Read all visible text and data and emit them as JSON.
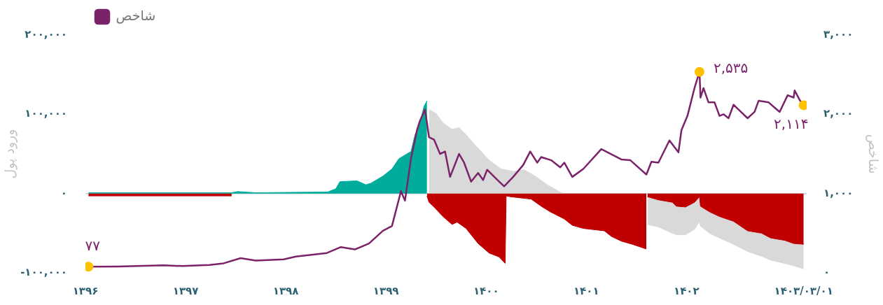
{
  "chart_data": {
    "type": "line",
    "ylabel": "ورود پول",
    "y2label": "شاخص",
    "legend": "top left",
    "xlim": [
      1396,
      1403.2
    ],
    "xticks": [
      {
        "value": 1396,
        "label": "۱۳۹۶"
      },
      {
        "value": 1397,
        "label": "۱۳۹۷"
      },
      {
        "value": 1398,
        "label": "۱۳۹۸"
      },
      {
        "value": 1399,
        "label": "۱۳۹۹"
      },
      {
        "value": 1400,
        "label": "۱۴۰۰"
      },
      {
        "value": 1401,
        "label": "۱۴۰۱"
      },
      {
        "value": 1402,
        "label": "۱۴۰۲"
      },
      {
        "value": 1403.17,
        "label": "۱۴۰۳/۰۳/۰۱"
      }
    ],
    "ylim": [
      -100000,
      200000
    ],
    "yticks": [
      {
        "value": -100000,
        "label": "-۱۰۰,۰۰۰"
      },
      {
        "value": 0,
        "label": "۰"
      },
      {
        "value": 100000,
        "label": "۱۰۰,۰۰۰"
      },
      {
        "value": 200000,
        "label": "۲۰۰,۰۰۰"
      }
    ],
    "y2lim": [
      0,
      3000
    ],
    "y2ticks": [
      {
        "value": 0,
        "label": "۰"
      },
      {
        "value": 1000,
        "label": "۱,۰۰۰"
      },
      {
        "value": 2000,
        "label": "۲,۰۰۰"
      },
      {
        "value": 3000,
        "label": "۳,۰۰۰"
      }
    ],
    "ref_lines": [
      {
        "axis": "y",
        "value": 0,
        "color": "#d0d0d0"
      }
    ],
    "series": [
      {
        "type": "area",
        "color": "#d9d9d9",
        "x": [
          1399.43,
          1399.5,
          1399.57,
          1399.66,
          1399.73,
          1399.8,
          1399.92,
          1400.03,
          1400.15,
          1400.27,
          1400.38,
          1400.5,
          1400.61,
          1400.75,
          1400.78,
          1401,
          1401.61,
          1401.72,
          1401.86,
          1401.9,
          1401.99,
          1402.08,
          1402.13,
          1402.14,
          1402.23,
          1402.33,
          1402.47,
          1402.61,
          1402.75,
          1402.84,
          1402.98,
          1403.07,
          1403.17
        ],
        "values": [
          106000,
          101000,
          89000,
          81000,
          83000,
          74000,
          57000,
          42000,
          31000,
          28000,
          30000,
          21000,
          11000,
          1000,
          0,
          null,
          -39000,
          -42000,
          -50000,
          -52000,
          -52000,
          -45000,
          -35000,
          -41000,
          -50000,
          -56000,
          -64000,
          -73000,
          -79000,
          -84000,
          -88000,
          -91000,
          -95000
        ]
      },
      {
        "type": "area",
        "color": "#00ad9c",
        "x": [
          1396.03,
          1397.46,
          1397.52,
          1397.7,
          1398.42,
          1398.5,
          1398.54,
          1398.71,
          1398.8,
          1398.85,
          1398.97,
          1399.06,
          1399.13,
          1399.25,
          1399.29,
          1399.34,
          1399.38,
          1399.41
        ],
        "values": [
          1000,
          1000,
          2500,
          1000,
          2000,
          6000,
          15000,
          16000,
          11000,
          13000,
          22000,
          31000,
          44000,
          53000,
          74000,
          89000,
          110000,
          117000
        ]
      },
      {
        "type": "area",
        "color": "#c00000",
        "x": [
          1396.03,
          1397.46,
          1398,
          1399.41,
          1399.43,
          1399.48,
          1399.57,
          1399.66,
          1399.71,
          1399.8,
          1399.92,
          1400.03,
          1400.13,
          1400.19,
          1400.2,
          1400.24,
          1400.45,
          1400.55,
          1400.64,
          1400.78,
          1400.86,
          1400.97,
          1401.18,
          1401.25,
          1401.35,
          1401.46,
          1401.6,
          1401.605,
          1401.61,
          1401.72,
          1401.86,
          1401.9,
          1401.99,
          1402.08,
          1402.13,
          1402.14,
          1402.23,
          1402.33,
          1402.47,
          1402.61,
          1402.75,
          1402.84,
          1402.98,
          1403.07,
          1403.17
        ],
        "values": [
          -3000,
          -3000,
          null,
          -3000,
          -11000,
          -17000,
          -29000,
          -39000,
          -36000,
          -44000,
          -63000,
          -75000,
          -80000,
          -88000,
          -3000,
          -4000,
          -7000,
          -16000,
          -23000,
          -32000,
          -40000,
          -44000,
          -47000,
          -54000,
          -60000,
          -64000,
          -70000,
          null,
          -4000,
          -8000,
          -11000,
          -16000,
          -17000,
          -11000,
          -4000,
          -16000,
          -23000,
          -29000,
          -35000,
          -47000,
          -50000,
          -56000,
          -59000,
          -63000,
          -64000
        ]
      },
      {
        "name": "شاخص",
        "color": "#7b2369",
        "axis": "y2",
        "x": [
          1396.03,
          1396.32,
          1396.78,
          1396.97,
          1397.24,
          1397.38,
          1397.55,
          1397.7,
          1397.98,
          1398.1,
          1398.41,
          1398.55,
          1398.69,
          1398.83,
          1398.97,
          1399.06,
          1399.15,
          1399.19,
          1399.25,
          1399.31,
          1399.34,
          1399.39,
          1399.43,
          1399.48,
          1399.54,
          1399.59,
          1399.64,
          1399.73,
          1399.78,
          1399.85,
          1399.92,
          1399.97,
          1400.01,
          1400.13,
          1400.18,
          1400.27,
          1400.37,
          1400.44,
          1400.51,
          1400.55,
          1400.65,
          1400.74,
          1400.78,
          1400.86,
          1400.97,
          1401.15,
          1401.35,
          1401.44,
          1401.6,
          1401.65,
          1401.72,
          1401.83,
          1401.92,
          1401.95,
          1402.01,
          1402.08,
          1402.13,
          1402.14,
          1402.17,
          1402.22,
          1402.28,
          1402.33,
          1402.37,
          1402.42,
          1402.47,
          1402.52,
          1402.61,
          1402.68,
          1402.72,
          1402.82,
          1402.93,
          1403.01,
          1403.07,
          1403.08,
          1403.13,
          1403.17
        ],
        "values": [
          77,
          80,
          95,
          85,
          100,
          120,
          185,
          155,
          170,
          205,
          250,
          325,
          295,
          370,
          530,
          590,
          1030,
          910,
          1440,
          1800,
          1920,
          2060,
          1710,
          1680,
          1500,
          1530,
          1210,
          1500,
          1390,
          1150,
          1260,
          1170,
          1300,
          1150,
          1090,
          1210,
          1360,
          1530,
          1390,
          1460,
          1420,
          1330,
          1390,
          1210,
          1310,
          1560,
          1430,
          1420,
          1240,
          1400,
          1390,
          1670,
          1520,
          1800,
          1980,
          2330,
          2535,
          2210,
          2330,
          2150,
          2150,
          1980,
          2000,
          1950,
          2120,
          2060,
          1950,
          2030,
          2170,
          2150,
          2030,
          2240,
          2210,
          2300,
          2180,
          2114
        ]
      },
      {
        "type": "scatter",
        "color": "#ffc000",
        "axis": "y2",
        "marker": "circle",
        "x": [
          1396.03,
          1402.13,
          1403.17
        ],
        "values": [
          77,
          2535,
          2114
        ],
        "value_labels": [
          "۷۷",
          "۲,۵۳۵",
          "۲,۱۱۴"
        ]
      }
    ]
  }
}
